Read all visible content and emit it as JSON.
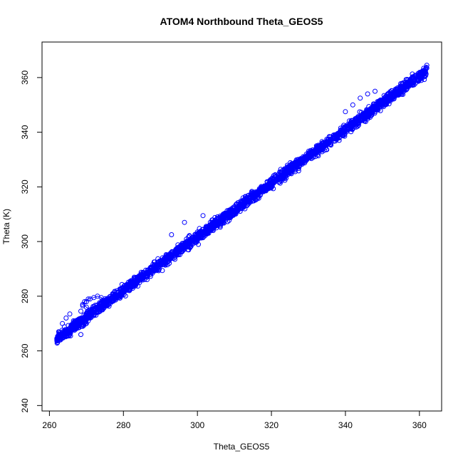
{
  "chart_data": {
    "type": "scatter",
    "title": "ATOM4 Northbound Theta_GEOS5",
    "xlabel": "Theta_GEOS5",
    "ylabel": "Theta (K)",
    "xlim": [
      258,
      366
    ],
    "ylim": [
      238,
      373
    ],
    "xticks": [
      260,
      280,
      300,
      320,
      340,
      360
    ],
    "yticks": [
      240,
      260,
      280,
      300,
      320,
      340,
      360
    ],
    "grid": false,
    "legend": "none",
    "marker": "open-circle",
    "connected": true,
    "color": "#0000ff",
    "series": [
      {
        "x": [
          262.0,
          262.5,
          263.0,
          262.8,
          263.5,
          264.0,
          265.0,
          266.0,
          267.0,
          268.0,
          269.0,
          270.0,
          270.5,
          271.0,
          271.5,
          272.0,
          271.0,
          270.0,
          269.0,
          269.5,
          270.5,
          272.0,
          273.0,
          274.0,
          275.0,
          276.0,
          277.0,
          278.0,
          279.0,
          280.0,
          281.0,
          282.0,
          283.0,
          284.0,
          285.0,
          286.0,
          287.0,
          288.0,
          289.0,
          290.0,
          291.0,
          292.0,
          293.0,
          294.0,
          295.0,
          296.0,
          297.0,
          298.0,
          299.0,
          300.0,
          301.0,
          302.0,
          303.0,
          304.0,
          305.0,
          306.0,
          307.0,
          308.0,
          309.0,
          310.0,
          311.0,
          312.0,
          313.0,
          314.0,
          315.0,
          316.0,
          317.0,
          318.0,
          319.0,
          320.0,
          321.0,
          322.0,
          323.0,
          324.0,
          325.0,
          326.0,
          327.0,
          328.0,
          329.0,
          330.0,
          331.0,
          332.0,
          333.0,
          334.0,
          335.0,
          336.0,
          337.0,
          338.0,
          339.0,
          340.0,
          341.0,
          342.0,
          343.0,
          344.0,
          345.0,
          346.0,
          347.0,
          348.0,
          349.0,
          350.0,
          351.0,
          352.0,
          353.0,
          354.0,
          355.0,
          356.0,
          357.0,
          358.0,
          359.0,
          360.0,
          361.0,
          362.0,
          362.0
        ],
        "y": [
          264.0,
          264.5,
          264.0,
          265.0,
          266.0,
          266.5,
          267.0,
          267.5,
          268.0,
          268.5,
          269.0,
          270.0,
          271.0,
          272.0,
          273.0,
          274.0,
          275.0,
          276.0,
          277.0,
          278.0,
          279.0,
          279.5,
          280.0,
          279.5,
          278.0,
          277.0,
          278.5,
          279.5,
          280.5,
          281.5,
          282.5,
          283.5,
          284.5,
          285.5,
          286.5,
          287.5,
          288.5,
          289.5,
          290.5,
          291.5,
          292.5,
          293.5,
          294.5,
          295.5,
          296.5,
          297.5,
          298.5,
          299.5,
          300.5,
          301.5,
          302.5,
          303.5,
          304.5,
          305.5,
          306.5,
          307.5,
          308.5,
          309.5,
          310.5,
          311.5,
          312.5,
          313.5,
          314.5,
          315.5,
          316.5,
          317.5,
          318.5,
          319.5,
          320.5,
          321.5,
          322.5,
          323.5,
          324.5,
          325.5,
          326.5,
          327.5,
          328.5,
          329.5,
          330.5,
          331.5,
          332.5,
          333.5,
          334.5,
          335.5,
          336.5,
          337.5,
          338.5,
          339.5,
          340.5,
          341.5,
          342.5,
          343.5,
          344.5,
          345.5,
          346.5,
          347.5,
          348.5,
          349.5,
          350.5,
          351.5,
          352.5,
          353.5,
          354.5,
          355.5,
          356.5,
          357.5,
          358.5,
          359.5,
          360.5,
          361.5,
          362.5,
          363.5,
          364.5
        ]
      }
    ],
    "scatter_spread": {
      "x_min": 262,
      "x_max": 362,
      "offset_sd": 1.6
    },
    "outliers": [
      {
        "x": 262.5,
        "y": 267.0
      },
      {
        "x": 263.5,
        "y": 270.0
      },
      {
        "x": 264.5,
        "y": 272.0
      },
      {
        "x": 265.5,
        "y": 273.5
      },
      {
        "x": 266.5,
        "y": 271.0
      },
      {
        "x": 268.5,
        "y": 274.5
      },
      {
        "x": 269.0,
        "y": 276.5
      },
      {
        "x": 270.0,
        "y": 278.0
      },
      {
        "x": 271.0,
        "y": 279.0
      },
      {
        "x": 268.5,
        "y": 266.0
      },
      {
        "x": 296.5,
        "y": 307.0
      },
      {
        "x": 301.5,
        "y": 309.5
      },
      {
        "x": 293.0,
        "y": 302.5
      },
      {
        "x": 340.0,
        "y": 347.5
      },
      {
        "x": 342.0,
        "y": 350.0
      },
      {
        "x": 344.0,
        "y": 352.5
      },
      {
        "x": 346.0,
        "y": 354.0
      },
      {
        "x": 348.0,
        "y": 355.0
      }
    ]
  }
}
